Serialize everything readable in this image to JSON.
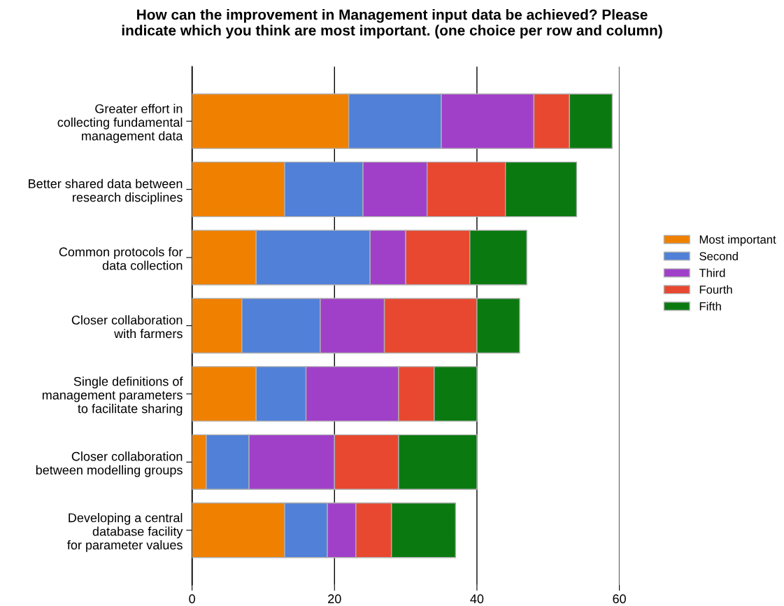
{
  "chart_data": {
    "type": "bar",
    "orientation": "horizontal",
    "stacked": true,
    "title": "How can the improvement in Management input data be achieved? Please\nindicate which you think are most important. (one choice per row and column)",
    "categories": [
      "Greater effort in\ncollecting fundamental\nmanagement data",
      "Better shared data between\nresearch disciplines",
      "Common protocols for\ndata collection",
      "Closer collaboration\nwith farmers",
      "Single definitions of\nmanagement parameters\nto facilitate sharing",
      "Closer collaboration\nbetween modelling groups",
      "Developing a central\ndatabase facility\nfor parameter values"
    ],
    "series": [
      {
        "name": "Most important",
        "color": "#f08000",
        "values": [
          22,
          13,
          9,
          7,
          9,
          2,
          13
        ]
      },
      {
        "name": "Second",
        "color": "#5080d8",
        "values": [
          13,
          11,
          16,
          11,
          7,
          6,
          6
        ]
      },
      {
        "name": "Third",
        "color": "#a040c8",
        "values": [
          13,
          9,
          5,
          9,
          13,
          12,
          4
        ]
      },
      {
        "name": "Fourth",
        "color": "#e84830",
        "values": [
          5,
          11,
          9,
          13,
          5,
          9,
          5
        ]
      },
      {
        "name": "Fifth",
        "color": "#0a7a10",
        "values": [
          6,
          10,
          8,
          6,
          6,
          11,
          9
        ]
      }
    ],
    "xlim": [
      0,
      60
    ],
    "xticks": [
      0,
      20,
      40,
      60
    ],
    "grid": "x",
    "legend": "right"
  }
}
